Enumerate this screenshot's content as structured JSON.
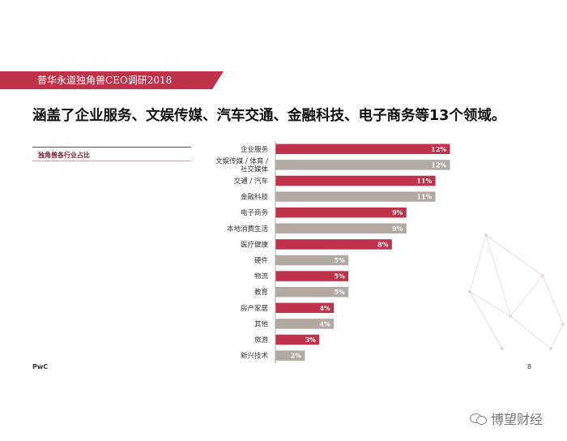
{
  "header": {
    "ribbon_title": "普华永道独角兽CEO调研2018",
    "headline": "涵盖了企业服务、文娱传媒、汽车交通、金融科技、电子商务等13个领域。"
  },
  "section": {
    "label": "独角兽各行业占比"
  },
  "footer": {
    "brand": "PwC",
    "page_number": "8"
  },
  "watermark": {
    "text": "博望财经"
  },
  "colors": {
    "red": "#c0314a",
    "gray": "#b3a9a3",
    "ribbon": "#c0314a"
  },
  "chart_data": {
    "type": "bar",
    "orientation": "horizontal",
    "categories": [
      [
        "企业服务"
      ],
      [
        "文娱传媒 / 体育 /",
        "社交媒体"
      ],
      [
        "交通 / 汽车"
      ],
      [
        "金融科技"
      ],
      [
        "电子商务"
      ],
      [
        "本地消费生活"
      ],
      [
        "医疗健康"
      ],
      [
        "硬件"
      ],
      [
        "物流"
      ],
      [
        "教育"
      ],
      [
        "房产家居"
      ],
      [
        "其他"
      ],
      [
        "旅游"
      ],
      [
        "新兴技术"
      ]
    ],
    "values": [
      12,
      12,
      11,
      11,
      9,
      9,
      8,
      5,
      5,
      5,
      4,
      4,
      3,
      2
    ],
    "value_labels": [
      "12%",
      "12%",
      "11%",
      "11%",
      "9%",
      "9%",
      "8%",
      "5%",
      "5%",
      "5%",
      "4%",
      "4%",
      "3%",
      "2%"
    ],
    "bar_colors": [
      "red",
      "gray",
      "red",
      "gray",
      "red",
      "gray",
      "red",
      "gray",
      "red",
      "gray",
      "red",
      "gray",
      "red",
      "gray"
    ],
    "xlim": [
      0,
      12
    ]
  }
}
